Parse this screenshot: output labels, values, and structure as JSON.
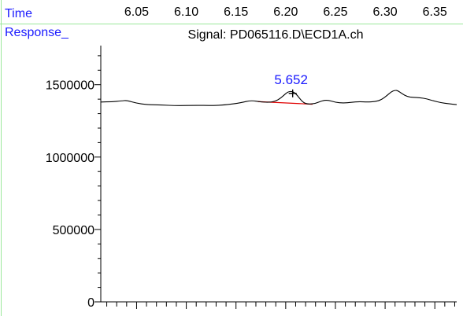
{
  "chart_data": {
    "type": "line",
    "x_axis_name": "Time",
    "y_axis_name": "Response_",
    "signal_title": "Signal: PD065116.D\\ECD1A.ch",
    "x_ticks": [
      "6.05",
      "6.10",
      "6.15",
      "6.20",
      "6.25",
      "6.30",
      "6.35"
    ],
    "x_tick_values": [
      6.05,
      6.1,
      6.15,
      6.2,
      6.25,
      6.3,
      6.35
    ],
    "y_ticks": [
      "0",
      "500000",
      "1000000",
      "1500000"
    ],
    "y_tick_values": [
      0,
      500000,
      1000000,
      1500000
    ],
    "xlim": [
      6.014,
      6.372
    ],
    "ylim": [
      0,
      1770000
    ],
    "peak_label": "5.652",
    "peak_time": 6.207,
    "baseline": {
      "x": [
        6.172,
        6.227
      ],
      "y": [
        1383000,
        1365000
      ]
    },
    "series": [
      {
        "x": [
          6.014,
          6.025,
          6.035,
          6.04,
          6.05,
          6.06,
          6.075,
          6.09,
          6.11,
          6.125,
          6.14,
          6.155,
          6.165,
          6.175,
          6.185,
          6.192,
          6.198,
          6.202,
          6.206,
          6.21,
          6.214,
          6.218,
          6.223,
          6.23,
          6.236,
          6.242,
          6.25,
          6.258,
          6.266,
          6.274,
          6.282,
          6.29,
          6.296,
          6.302,
          6.306,
          6.31,
          6.313,
          6.317,
          6.322,
          6.328,
          6.335,
          6.342,
          6.349,
          6.356,
          6.364,
          6.372
        ],
        "y": [
          1380000,
          1382000,
          1388000,
          1392000,
          1372000,
          1362000,
          1360000,
          1355000,
          1358000,
          1356000,
          1360000,
          1375000,
          1392000,
          1380000,
          1378000,
          1392000,
          1425000,
          1450000,
          1455000,
          1440000,
          1405000,
          1375000,
          1365000,
          1370000,
          1388000,
          1395000,
          1378000,
          1373000,
          1378000,
          1383000,
          1380000,
          1383000,
          1395000,
          1425000,
          1450000,
          1462000,
          1458000,
          1438000,
          1418000,
          1412000,
          1410000,
          1402000,
          1388000,
          1376000,
          1368000,
          1362000
        ]
      }
    ]
  }
}
